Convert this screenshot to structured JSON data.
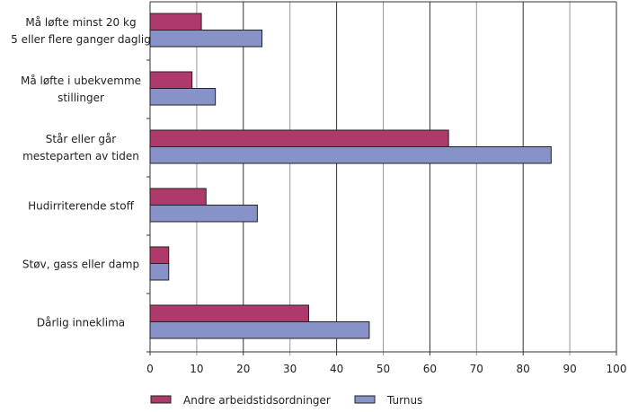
{
  "chart_data": {
    "type": "bar",
    "orientation": "horizontal",
    "categories": [
      [
        "Må løfte minst 20 kg",
        "5 eller flere ganger daglig"
      ],
      [
        "Må løfte i ubekvemme",
        "stillinger"
      ],
      [
        "Står eller går",
        "mesteparten av tiden"
      ],
      [
        "Hudirriterende stoff"
      ],
      [
        "Støv, gass eller damp"
      ],
      [
        "Dårlig inneklima"
      ]
    ],
    "series": [
      {
        "name": "Andre arbeidstidsordninger",
        "color": "#ae3a6b",
        "values": [
          11,
          9,
          64,
          12,
          4,
          34
        ]
      },
      {
        "name": "Turnus",
        "color": "#8793c8",
        "values": [
          24,
          14,
          86,
          23,
          4,
          47
        ]
      }
    ],
    "xlim": [
      0,
      100
    ],
    "xticks": [
      "0",
      "10",
      "20",
      "30",
      "40",
      "50",
      "60",
      "70",
      "80",
      "90",
      "100"
    ],
    "grid": true,
    "legend": "bottom"
  }
}
